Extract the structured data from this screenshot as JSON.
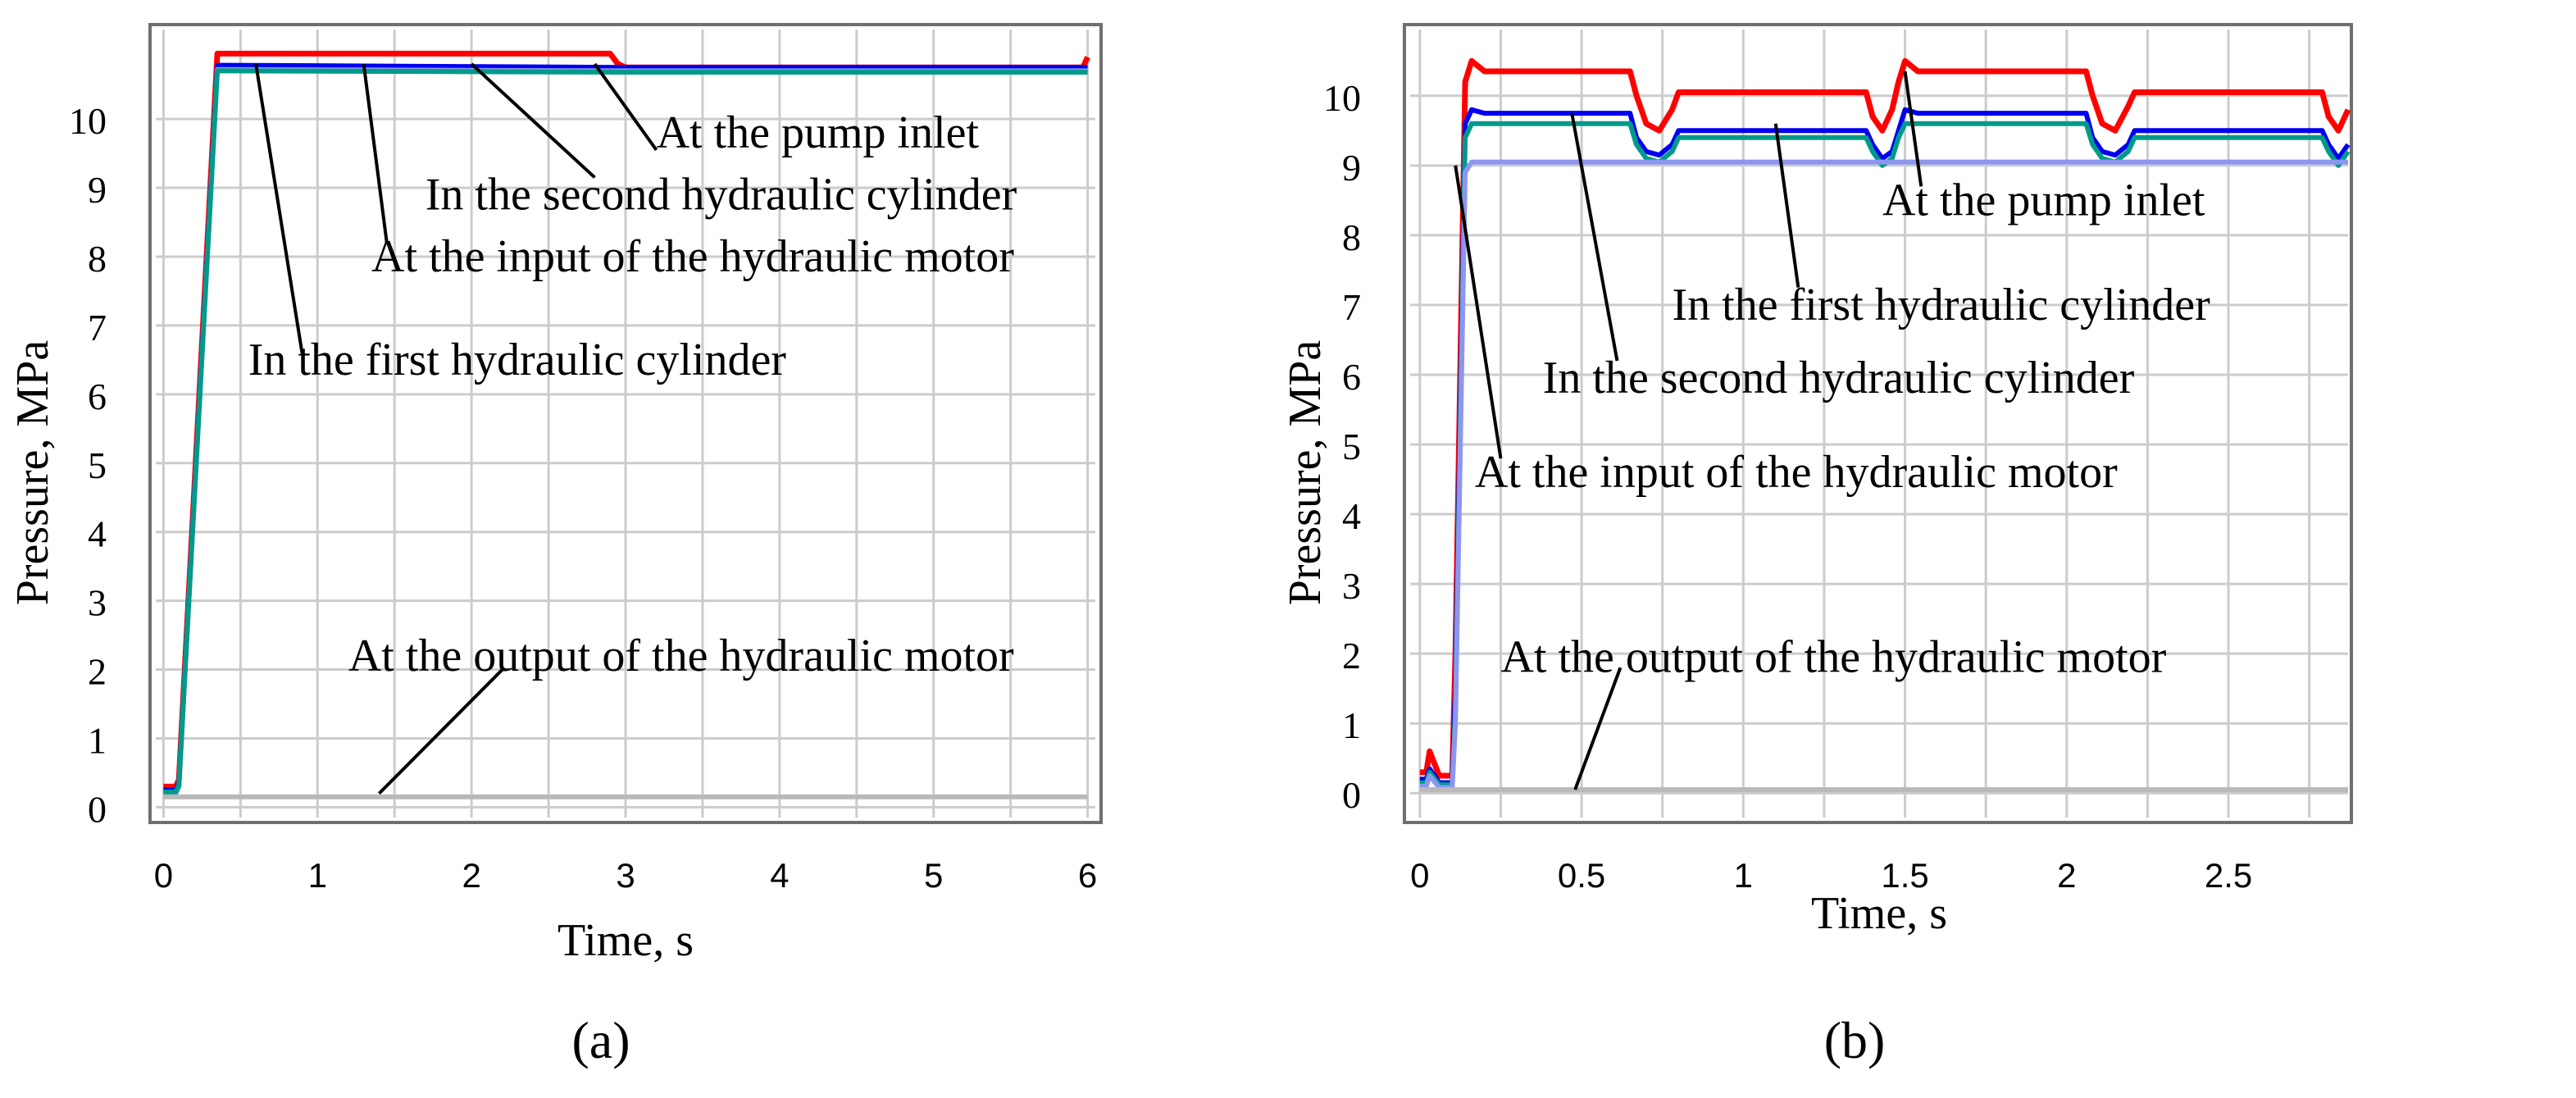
{
  "colors": {
    "pump_inlet": "#ff0000",
    "second_cylinder": "#0000ee",
    "first_cylinder": "#009a8a",
    "motor_input": "#8c96f0",
    "motor_output": "#b9b9b9",
    "grid": "#cccccc",
    "frame": "#6f6f6f"
  },
  "chart_data": [
    {
      "type": "line",
      "subfigure_label": "(a)",
      "xlabel": "Time, s",
      "ylabel": "Pressure, MPa",
      "xlim": [
        -0.05,
        6.05
      ],
      "ylim": [
        -0.15,
        11.3
      ],
      "xticks": [
        0,
        1,
        2,
        3,
        4,
        5,
        6
      ],
      "yticks": [
        0,
        1,
        2,
        3,
        4,
        5,
        6,
        7,
        8,
        9,
        10
      ],
      "grid": true,
      "series": [
        {
          "name": "At the pump inlet",
          "color": "pump_inlet",
          "x": [
            0,
            0.08,
            0.1,
            0.35,
            0.4,
            2.9,
            2.95,
            3.0,
            5.97,
            6.0
          ],
          "y": [
            0.3,
            0.3,
            0.4,
            10.95,
            10.95,
            10.95,
            10.8,
            10.75,
            10.75,
            10.9
          ]
        },
        {
          "name": "In the second hydraulic cylinder",
          "color": "second_cylinder",
          "x": [
            0,
            0.08,
            0.1,
            0.35,
            0.4,
            3.0,
            6.0
          ],
          "y": [
            0.25,
            0.25,
            0.35,
            10.78,
            10.78,
            10.75,
            10.75
          ]
        },
        {
          "name": "At the input of the hydraulic motor",
          "color": "motor_input",
          "x": [
            0,
            0.08,
            0.1,
            0.35,
            0.4,
            3.0,
            6.0
          ],
          "y": [
            0.2,
            0.2,
            0.3,
            10.72,
            10.72,
            10.7,
            10.7
          ]
        },
        {
          "name": "In the first hydraulic cylinder",
          "color": "first_cylinder",
          "x": [
            0,
            0.08,
            0.1,
            0.35,
            0.4,
            3.0,
            6.0
          ],
          "y": [
            0.22,
            0.22,
            0.32,
            10.7,
            10.7,
            10.68,
            10.68
          ]
        },
        {
          "name": "At the output of the hydraulic motor",
          "color": "motor_output",
          "x": [
            0,
            6.0
          ],
          "y": [
            0.15,
            0.15
          ]
        }
      ],
      "annotations": [
        {
          "text": "At the pump inlet",
          "point": [
            2.8,
            10.8
          ],
          "label_at": [
            3.2,
            9.8
          ],
          "anchor": [
            3.2,
            9.55
          ]
        },
        {
          "text": "In the second hydraulic cylinder",
          "point": [
            2.0,
            10.8
          ],
          "label_at": [
            1.7,
            8.9
          ],
          "anchor": [
            2.8,
            9.15
          ]
        },
        {
          "text": "At the input of the hydraulic motor",
          "point": [
            1.3,
            10.8
          ],
          "label_at": [
            1.35,
            8.0
          ],
          "anchor": [
            1.45,
            8.2
          ]
        },
        {
          "text": "In the first hydraulic cylinder",
          "point": [
            0.6,
            10.8
          ],
          "label_at": [
            0.55,
            6.5
          ],
          "anchor": [
            0.9,
            6.6
          ]
        },
        {
          "text": "At the output of the hydraulic motor",
          "point": [
            1.4,
            0.2
          ],
          "label_at": [
            1.2,
            2.2
          ],
          "anchor": [
            2.2,
            2.0
          ]
        }
      ]
    },
    {
      "type": "line",
      "subfigure_label": "(b)",
      "xlabel": "Time, s",
      "ylabel": "Pressure, MPa",
      "xlim": [
        -0.03,
        2.87
      ],
      "ylim": [
        -0.35,
        10.95
      ],
      "xticks": [
        0,
        0.5,
        1,
        1.5,
        2,
        2.5
      ],
      "yticks": [
        0,
        1,
        2,
        3,
        4,
        5,
        6,
        7,
        8,
        9,
        10
      ],
      "grid": true,
      "series": [
        {
          "name": "At the pump inlet",
          "color": "pump_inlet",
          "x": [
            0,
            0.02,
            0.03,
            0.06,
            0.1,
            0.11,
            0.14,
            0.16,
            0.2,
            0.65,
            0.67,
            0.7,
            0.74,
            0.78,
            0.8,
            1.38,
            1.4,
            1.43,
            1.46,
            1.48,
            1.5,
            1.54,
            2.06,
            2.08,
            2.11,
            2.15,
            2.19,
            2.21,
            2.79,
            2.81,
            2.84,
            2.87
          ],
          "y": [
            0.3,
            0.3,
            0.6,
            0.25,
            0.25,
            2.0,
            10.2,
            10.5,
            10.35,
            10.35,
            10.0,
            9.6,
            9.5,
            9.8,
            10.05,
            10.05,
            9.7,
            9.5,
            9.8,
            10.2,
            10.5,
            10.35,
            10.35,
            10.0,
            9.6,
            9.5,
            9.85,
            10.05,
            10.05,
            9.7,
            9.5,
            9.8
          ]
        },
        {
          "name": "In the second hydraulic cylinder",
          "color": "second_cylinder",
          "x": [
            0,
            0.02,
            0.03,
            0.06,
            0.1,
            0.11,
            0.14,
            0.16,
            0.2,
            0.65,
            0.67,
            0.7,
            0.74,
            0.78,
            0.8,
            1.38,
            1.4,
            1.43,
            1.46,
            1.48,
            1.5,
            1.54,
            2.06,
            2.08,
            2.11,
            2.15,
            2.19,
            2.21,
            2.79,
            2.81,
            2.84,
            2.87
          ],
          "y": [
            0.2,
            0.2,
            0.35,
            0.15,
            0.15,
            1.5,
            9.6,
            9.8,
            9.75,
            9.75,
            9.4,
            9.2,
            9.15,
            9.3,
            9.5,
            9.5,
            9.3,
            9.1,
            9.2,
            9.5,
            9.8,
            9.75,
            9.75,
            9.4,
            9.2,
            9.15,
            9.3,
            9.5,
            9.5,
            9.3,
            9.1,
            9.3
          ]
        },
        {
          "name": "In the first hydraulic cylinder",
          "color": "first_cylinder",
          "x": [
            0,
            0.02,
            0.03,
            0.06,
            0.1,
            0.11,
            0.14,
            0.16,
            0.2,
            0.65,
            0.67,
            0.7,
            0.74,
            0.78,
            0.8,
            1.38,
            1.4,
            1.43,
            1.46,
            1.48,
            1.5,
            1.54,
            2.06,
            2.08,
            2.11,
            2.15,
            2.19,
            2.21,
            2.79,
            2.81,
            2.84,
            2.87
          ],
          "y": [
            0.15,
            0.15,
            0.3,
            0.12,
            0.12,
            1.2,
            9.4,
            9.6,
            9.6,
            9.6,
            9.3,
            9.1,
            9.05,
            9.2,
            9.4,
            9.4,
            9.2,
            9.0,
            9.1,
            9.4,
            9.6,
            9.6,
            9.6,
            9.3,
            9.1,
            9.05,
            9.2,
            9.4,
            9.4,
            9.2,
            9.0,
            9.2
          ]
        },
        {
          "name": "At the input of the hydraulic motor",
          "color": "motor_input",
          "x": [
            0,
            0.02,
            0.03,
            0.06,
            0.1,
            0.11,
            0.14,
            0.16,
            2.87
          ],
          "y": [
            0.1,
            0.1,
            0.25,
            0.08,
            0.08,
            1.0,
            8.9,
            9.05,
            9.05
          ]
        },
        {
          "name": "At the output of the hydraulic motor",
          "color": "motor_output",
          "x": [
            0,
            2.87
          ],
          "y": [
            0.05,
            0.05
          ]
        }
      ],
      "annotations": [
        {
          "text": "At the pump inlet",
          "point": [
            1.5,
            10.35
          ],
          "label_at": [
            1.43,
            8.5
          ],
          "anchor": [
            1.55,
            8.7
          ]
        },
        {
          "text": "In the first hydraulic cylinder",
          "point": [
            1.1,
            9.6
          ],
          "label_at": [
            0.78,
            7.0
          ],
          "anchor": [
            1.17,
            7.25
          ]
        },
        {
          "text": "In the second hydraulic cylinder",
          "point": [
            0.47,
            9.75
          ],
          "label_at": [
            0.38,
            5.95
          ],
          "anchor": [
            0.61,
            6.2
          ]
        },
        {
          "text": "At the input of the hydraulic motor",
          "point": [
            0.11,
            9.0
          ],
          "label_at": [
            0.17,
            4.6
          ],
          "anchor": [
            0.25,
            4.8
          ]
        },
        {
          "text": "At the output of the hydraulic motor",
          "point": [
            0.48,
            0.05
          ],
          "label_at": [
            0.25,
            1.95
          ],
          "anchor": [
            0.62,
            1.8
          ]
        }
      ]
    }
  ]
}
